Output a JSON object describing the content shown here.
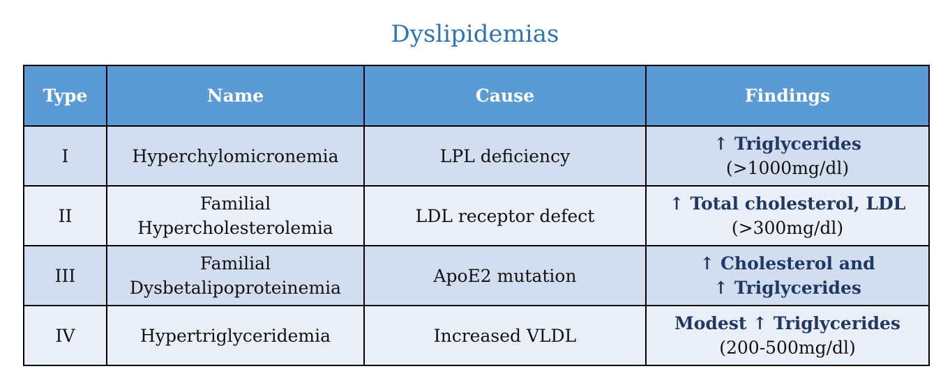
{
  "title": "Dyslipidemias",
  "table": {
    "headers": [
      "Type",
      "Name",
      "Cause",
      "Findings"
    ],
    "rows": [
      {
        "type": "I",
        "name": [
          "Hyperchylomicronemia"
        ],
        "cause": "LPL deficiency",
        "findings": [
          {
            "text": "↑ Triglycerides",
            "bold": true
          },
          {
            "text": "(>1000mg/dl)",
            "bold": false
          }
        ]
      },
      {
        "type": "II",
        "name": [
          "Familial",
          "Hypercholesterolemia"
        ],
        "cause": "LDL receptor defect",
        "findings": [
          {
            "text": "↑ Total cholesterol, LDL",
            "bold": true
          },
          {
            "text": "(>300mg/dl)",
            "bold": false
          }
        ]
      },
      {
        "type": "III",
        "name": [
          "Familial",
          "Dysbetalipoproteinemia"
        ],
        "cause": "ApoE2 mutation",
        "findings": [
          {
            "text": "↑ Cholesterol and",
            "bold": true
          },
          {
            "text": "↑ Triglycerides",
            "bold": true
          }
        ]
      },
      {
        "type": "IV",
        "name": [
          "Hypertriglyceridemia"
        ],
        "cause": "Increased VLDL",
        "findings": [
          {
            "text": "Modest ↑ Triglycerides",
            "bold": true
          },
          {
            "text": "(200-500mg/dl)",
            "bold": false
          }
        ]
      }
    ]
  }
}
